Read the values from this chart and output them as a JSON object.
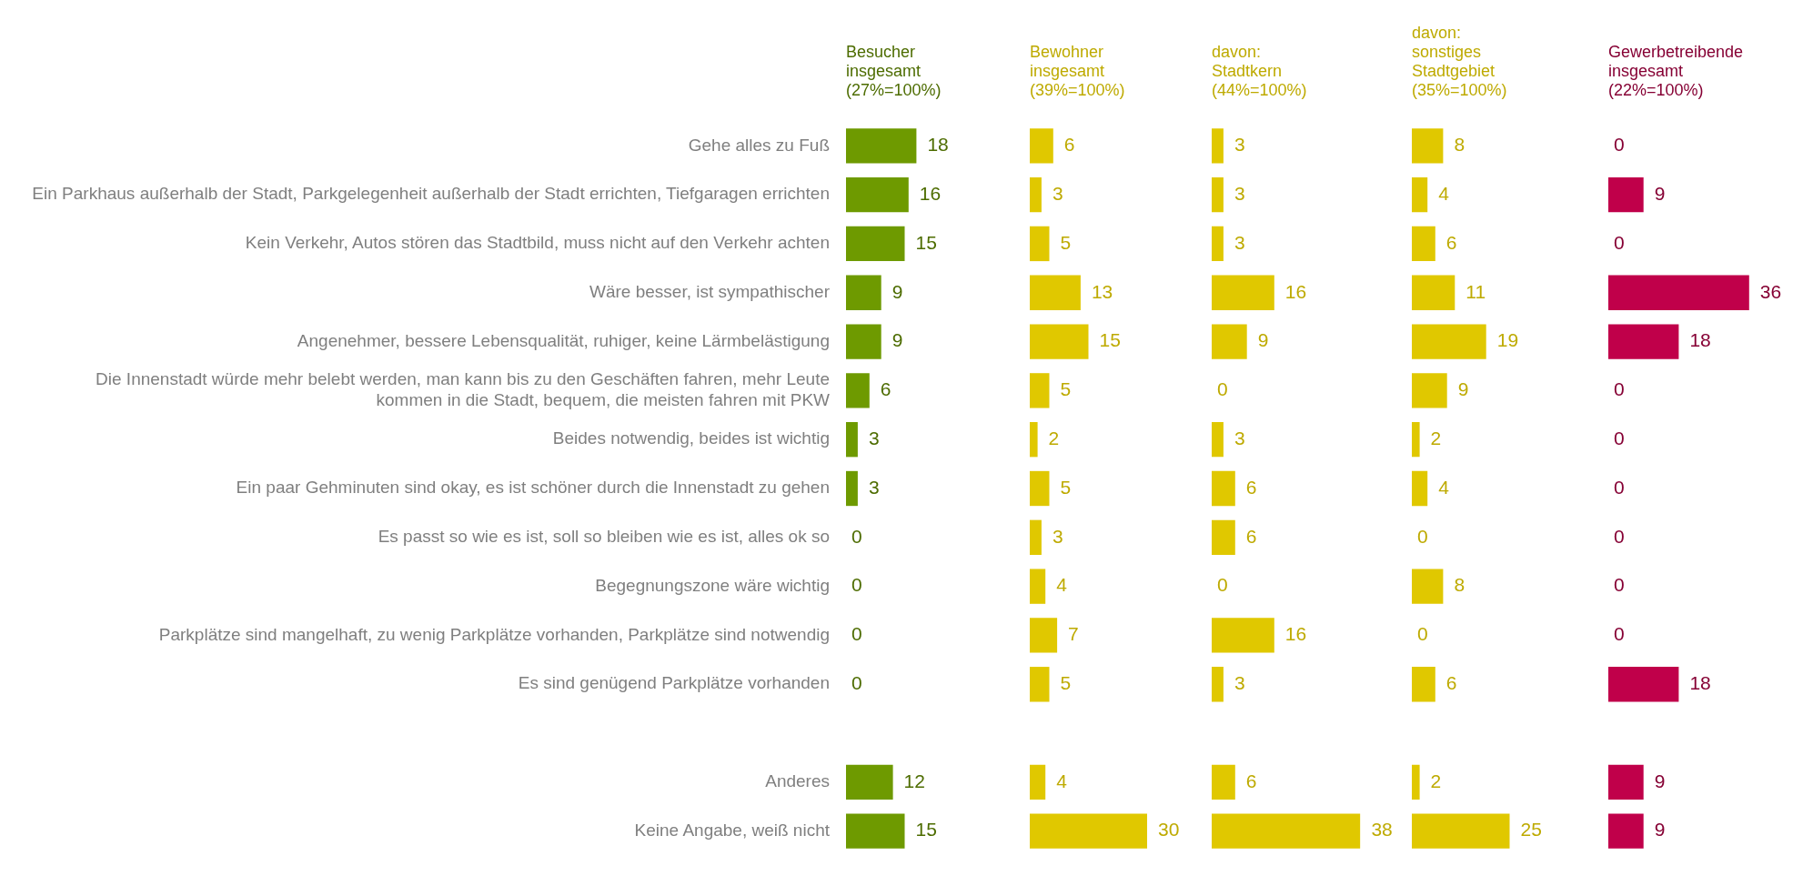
{
  "chart_data": [
    {
      "type": "bar",
      "orientation": "horizontal",
      "title": "Besucher insgesamt",
      "subtitle": "(27%=100%)",
      "color": "#6e9a00",
      "data_labels": true,
      "tick_labels": "y",
      "grid": false,
      "legend": false,
      "categories": [
        "Gehe alles zu Fuß",
        "Ein Parkhaus außerhalb der Stadt, Parkgelegenheit außerhalb der Stadt errichten, Tiefgaragen errichten",
        "Kein Verkehr, Autos stören das Stadtbild, muss nicht auf den Verkehr achten",
        "Wäre besser, ist sympathischer",
        "Angenehmer, bessere Lebensqualität, ruhiger, keine Lärmbelästigung",
        "Die Innenstadt würde mehr belebt werden, man kann bis zu den Geschäften fahren, mehr Leute kommen in die Stadt, bequem, die meisten fahren mit PKW",
        "Beides notwendig, beides ist wichtig",
        "Ein paar Gehminuten sind okay, es ist schöner durch die Innenstadt zu gehen",
        "Es passt so wie es ist, soll so bleiben wie es ist, alles ok so",
        "Begegnungszone wäre wichtig",
        "Parkplätze sind mangelhaft, zu wenig Parkplätze vorhanden, Parkplätze sind notwendig",
        "Es sind genügend Parkplätze vorhanden",
        null,
        "Anderes",
        "Keine Angabe, weiß nicht"
      ],
      "values": [
        18,
        16,
        15,
        9,
        9,
        6,
        3,
        3,
        0,
        0,
        0,
        0,
        null,
        12,
        15
      ]
    },
    {
      "type": "bar",
      "orientation": "horizontal",
      "title": "Bewohner insgesamt",
      "subtitle": "(39%=100%)",
      "color": "#e0c800",
      "data_labels": true,
      "tick_labels": false,
      "grid": false,
      "legend": false,
      "categories": [
        null,
        null,
        null,
        null,
        null,
        null,
        null,
        null,
        null,
        null,
        null,
        null,
        null,
        null,
        null
      ],
      "values": [
        6,
        3,
        5,
        13,
        15,
        5,
        2,
        5,
        3,
        4,
        7,
        5,
        null,
        4,
        30
      ]
    },
    {
      "type": "bar",
      "orientation": "horizontal",
      "title": "davon: Stadtkern",
      "subtitle": "(44%=100%)",
      "color": "#e0c800",
      "data_labels": true,
      "tick_labels": false,
      "grid": false,
      "legend": false,
      "categories": [
        null,
        null,
        null,
        null,
        null,
        null,
        null,
        null,
        null,
        null,
        null,
        null,
        null,
        null,
        null
      ],
      "values": [
        3,
        3,
        3,
        16,
        9,
        0,
        3,
        6,
        6,
        0,
        16,
        3,
        null,
        6,
        38
      ]
    },
    {
      "type": "bar",
      "orientation": "horizontal",
      "title": "davon: sonstiges Stadtgebiet",
      "subtitle": "(35%=100%)",
      "color": "#e0c800",
      "data_labels": true,
      "tick_labels": false,
      "grid": false,
      "legend": false,
      "categories": [
        null,
        null,
        null,
        null,
        null,
        null,
        null,
        null,
        null,
        null,
        null,
        null,
        null,
        null,
        null
      ],
      "values": [
        8,
        4,
        6,
        11,
        19,
        9,
        2,
        4,
        0,
        8,
        0,
        6,
        null,
        2,
        25
      ]
    },
    {
      "type": "bar",
      "orientation": "horizontal",
      "title": "Gewerbetreibende insgesamt",
      "subtitle": "(22%=100%)",
      "color": "#c0004a",
      "data_labels": true,
      "tick_labels": false,
      "grid": false,
      "legend": false,
      "categories": [
        null,
        null,
        null,
        null,
        null,
        null,
        null,
        null,
        null,
        null,
        null,
        null,
        null,
        null,
        null
      ],
      "values": [
        0,
        9,
        0,
        36,
        18,
        0,
        0,
        0,
        0,
        0,
        0,
        18,
        null,
        9,
        9
      ]
    }
  ]
}
